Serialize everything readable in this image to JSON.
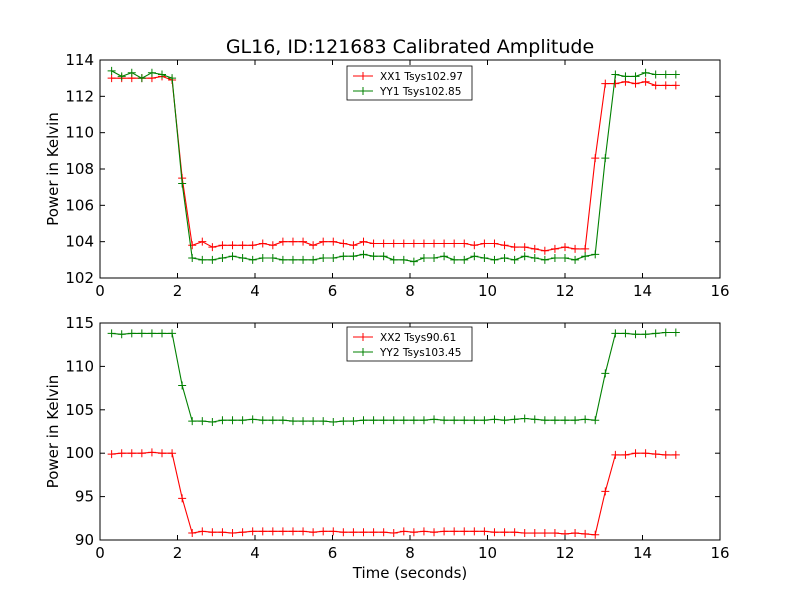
{
  "figure": {
    "title": "GL16, ID:121683 Calibrated Amplitude"
  },
  "chart_data": [
    {
      "type": "line",
      "title": "GL16, ID:121683 Calibrated Amplitude",
      "xlabel": "",
      "ylabel": "Power in Kelvin",
      "xlim": [
        0,
        16
      ],
      "ylim": [
        102,
        114
      ],
      "xticks": [
        "0",
        "2",
        "4",
        "6",
        "8",
        "10",
        "12",
        "14",
        "16"
      ],
      "yticks": [
        "102",
        "104",
        "106",
        "108",
        "110",
        "112",
        "114"
      ],
      "grid": false,
      "legend_position": "top-center",
      "x": [
        0.3,
        0.56,
        0.82,
        1.08,
        1.34,
        1.6,
        1.86,
        2.12,
        2.38,
        2.64,
        2.9,
        3.16,
        3.42,
        3.68,
        3.94,
        4.2,
        4.46,
        4.72,
        4.98,
        5.24,
        5.5,
        5.76,
        6.02,
        6.28,
        6.54,
        6.8,
        7.06,
        7.32,
        7.58,
        7.84,
        8.1,
        8.36,
        8.62,
        8.88,
        9.14,
        9.4,
        9.66,
        9.92,
        10.18,
        10.44,
        10.7,
        10.96,
        11.22,
        11.48,
        11.74,
        12.0,
        12.26,
        12.52,
        12.78,
        13.04,
        13.3,
        13.56,
        13.82,
        14.08,
        14.34,
        14.6,
        14.86
      ],
      "series": [
        {
          "name": "XX1 Tsys102.97",
          "color": "#ff0000",
          "values": [
            113.0,
            113.0,
            113.0,
            113.0,
            113.0,
            113.1,
            112.9,
            107.5,
            103.8,
            104.0,
            103.7,
            103.8,
            103.8,
            103.8,
            103.8,
            103.9,
            103.8,
            104.0,
            104.0,
            104.0,
            103.8,
            104.0,
            104.0,
            103.9,
            103.8,
            104.0,
            103.9,
            103.9,
            103.9,
            103.9,
            103.9,
            103.9,
            103.9,
            103.9,
            103.9,
            103.9,
            103.8,
            103.9,
            103.9,
            103.8,
            103.7,
            103.7,
            103.6,
            103.5,
            103.6,
            103.7,
            103.6,
            103.6,
            108.6,
            112.7,
            112.7,
            112.8,
            112.7,
            112.8,
            112.6,
            112.6,
            112.6
          ]
        },
        {
          "name": "YY1 Tsys102.85",
          "color": "#008000",
          "values": [
            113.4,
            113.1,
            113.3,
            113.0,
            113.3,
            113.2,
            113.0,
            107.2,
            103.1,
            103.0,
            103.0,
            103.1,
            103.2,
            103.1,
            103.0,
            103.1,
            103.1,
            103.0,
            103.0,
            103.0,
            103.0,
            103.1,
            103.1,
            103.2,
            103.2,
            103.3,
            103.2,
            103.2,
            103.0,
            103.0,
            102.9,
            103.1,
            103.1,
            103.2,
            103.0,
            103.0,
            103.2,
            103.1,
            103.0,
            103.1,
            103.0,
            103.2,
            103.1,
            103.0,
            103.1,
            103.1,
            103.0,
            103.2,
            103.3,
            108.6,
            113.2,
            113.1,
            113.1,
            113.3,
            113.2,
            113.2,
            113.2
          ]
        }
      ]
    },
    {
      "type": "line",
      "title": "",
      "xlabel": "Time (seconds)",
      "ylabel": "Power in Kelvin",
      "xlim": [
        0,
        16
      ],
      "ylim": [
        90,
        115
      ],
      "xticks": [
        "0",
        "2",
        "4",
        "6",
        "8",
        "10",
        "12",
        "14",
        "16"
      ],
      "yticks": [
        "90",
        "95",
        "100",
        "105",
        "110",
        "115"
      ],
      "grid": false,
      "legend_position": "top-center",
      "x": [
        0.3,
        0.56,
        0.82,
        1.08,
        1.34,
        1.6,
        1.86,
        2.12,
        2.38,
        2.64,
        2.9,
        3.16,
        3.42,
        3.68,
        3.94,
        4.2,
        4.46,
        4.72,
        4.98,
        5.24,
        5.5,
        5.76,
        6.02,
        6.28,
        6.54,
        6.8,
        7.06,
        7.32,
        7.58,
        7.84,
        8.1,
        8.36,
        8.62,
        8.88,
        9.14,
        9.4,
        9.66,
        9.92,
        10.18,
        10.44,
        10.7,
        10.96,
        11.22,
        11.48,
        11.74,
        12.0,
        12.26,
        12.52,
        12.78,
        13.04,
        13.3,
        13.56,
        13.82,
        14.08,
        14.34,
        14.6,
        14.86
      ],
      "series": [
        {
          "name": "XX2 Tsys90.61",
          "color": "#ff0000",
          "values": [
            99.9,
            100.0,
            100.0,
            100.0,
            100.1,
            100.0,
            100.0,
            94.8,
            90.8,
            91.0,
            90.9,
            90.9,
            90.8,
            90.9,
            91.0,
            91.0,
            91.0,
            91.0,
            91.0,
            91.0,
            90.9,
            91.0,
            91.0,
            90.9,
            90.9,
            90.9,
            90.9,
            90.9,
            90.8,
            91.0,
            90.9,
            91.0,
            90.9,
            91.0,
            91.0,
            91.0,
            91.0,
            91.0,
            90.9,
            90.9,
            90.9,
            90.8,
            90.8,
            90.8,
            90.8,
            90.7,
            90.8,
            90.7,
            90.6,
            95.6,
            99.8,
            99.8,
            100.0,
            100.0,
            99.9,
            99.8,
            99.8
          ]
        },
        {
          "name": "YY2 Tsys103.45",
          "color": "#008000",
          "values": [
            113.8,
            113.7,
            113.8,
            113.8,
            113.8,
            113.8,
            113.8,
            107.8,
            103.7,
            103.7,
            103.6,
            103.8,
            103.8,
            103.8,
            103.9,
            103.8,
            103.8,
            103.8,
            103.7,
            103.7,
            103.7,
            103.7,
            103.6,
            103.7,
            103.7,
            103.8,
            103.8,
            103.8,
            103.8,
            103.8,
            103.8,
            103.8,
            103.9,
            103.8,
            103.8,
            103.8,
            103.8,
            103.8,
            103.9,
            103.8,
            103.9,
            104.0,
            103.9,
            103.8,
            103.8,
            103.8,
            103.8,
            103.9,
            103.8,
            109.2,
            113.8,
            113.8,
            113.7,
            113.7,
            113.8,
            113.9,
            113.9
          ]
        }
      ]
    }
  ]
}
